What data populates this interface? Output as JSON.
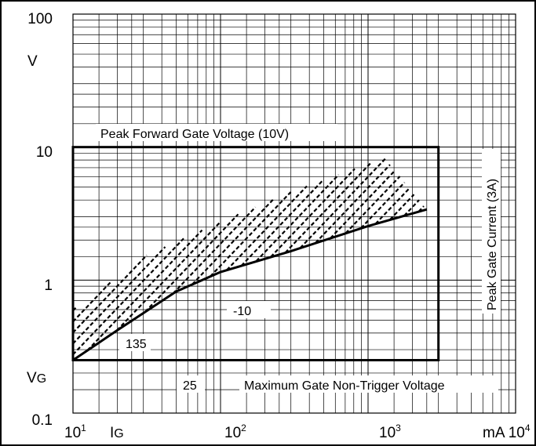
{
  "chart_data": {
    "type": "line",
    "x_scale": "log",
    "y_scale": "log",
    "xlim": [
      10,
      10000
    ],
    "ylim": [
      0.1,
      100
    ],
    "grid": true,
    "y_ticks": [
      {
        "value": 100,
        "label": "100"
      },
      {
        "value": 10,
        "label": "10"
      },
      {
        "value": 1,
        "label": "1"
      },
      {
        "value": 0.1,
        "label": "0.1"
      }
    ],
    "x_ticks": [
      {
        "value": 10,
        "base": "10",
        "exp": "1"
      },
      {
        "value": 100,
        "base": "10",
        "exp": "2"
      },
      {
        "value": 1000,
        "base": "10",
        "exp": "3"
      },
      {
        "value": 10000,
        "base": "mA 10",
        "exp": "4"
      }
    ],
    "y_unit_label": "V",
    "y_axis_label": {
      "main": "V",
      "sub": "G"
    },
    "x_axis_label": {
      "main": "I",
      "sub": "G"
    },
    "boundaries": {
      "peak_forward_gate_voltage": {
        "value": 10,
        "label": "Peak Forward Gate Voltage (10V)"
      },
      "peak_gate_current_ma": {
        "value": 3000,
        "label": "Peak Gate Current (3A)"
      },
      "max_gate_non_trigger_voltage": {
        "value": 0.25,
        "label": "Maximum Gate Non-Trigger Voltage"
      }
    },
    "series": [
      {
        "name": "-10",
        "x": [
          10,
          20,
          50,
          100,
          300,
          1000,
          2500
        ],
        "y": [
          0.25,
          0.42,
          0.82,
          1.15,
          1.65,
          2.55,
          3.4
        ]
      }
    ],
    "hatched_region": {
      "lower_x": [
        10,
        20,
        50,
        100,
        300,
        1000,
        2500
      ],
      "lower_y": [
        0.25,
        0.42,
        0.82,
        1.15,
        1.65,
        2.55,
        3.4
      ],
      "upper_x": [
        10,
        20,
        30,
        100,
        300,
        1000,
        1300,
        2500
      ],
      "upper_y": [
        0.6,
        1.05,
        1.5,
        2.75,
        4.6,
        7.5,
        8.3,
        3.4
      ]
    },
    "annotations": [
      {
        "text": "135",
        "x": 18,
        "y": 0.29
      },
      {
        "text": "-10",
        "x": 370,
        "y": 0.6
      },
      {
        "text": "25",
        "x": 70,
        "y": 0.17
      }
    ]
  }
}
